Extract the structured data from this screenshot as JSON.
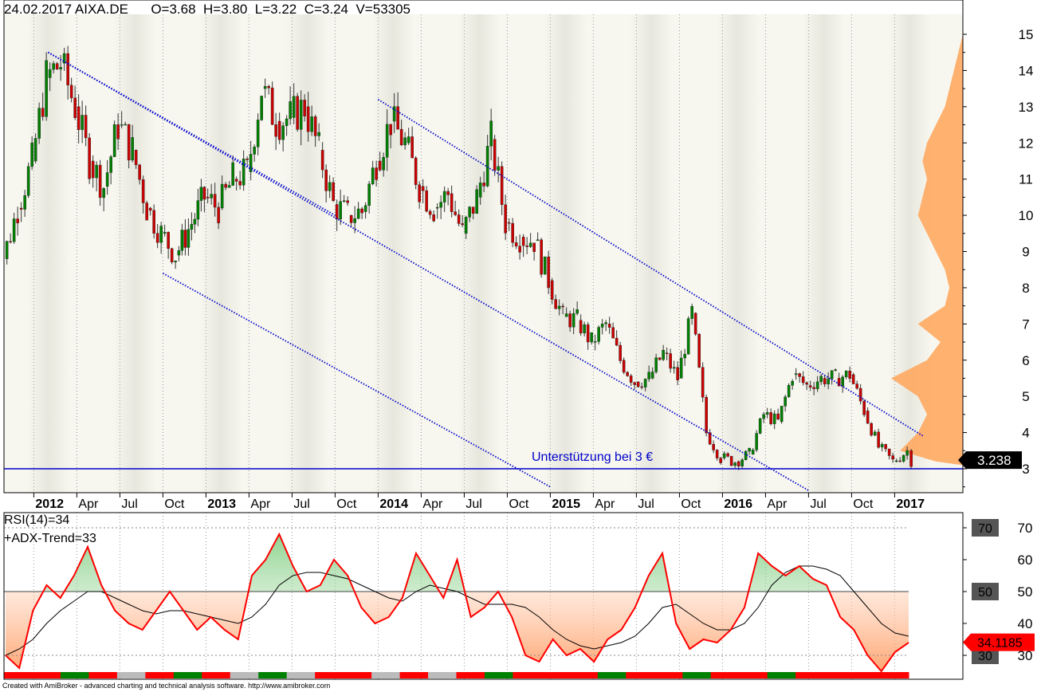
{
  "header": {
    "date": "24.02.2017",
    "symbol": "AIXA.DE",
    "open": "O=3.68",
    "high": "H=3.80",
    "low": "L=3.22",
    "close": "C=3.24",
    "volume": "V=53305"
  },
  "colors": {
    "up_candle": "#008000",
    "down_candle": "#cc0000",
    "trendline": "#0000cc",
    "volume_profile": "#ffa860",
    "rsi_line": "#ff0000",
    "band_light": "#f7f7ef",
    "band_dark": "#e7e7de"
  },
  "chart_data": [
    {
      "type": "candlestick",
      "title": "",
      "y_axis": {
        "min": 3,
        "max": 15,
        "ticks": [
          "15",
          "14",
          "13",
          "12",
          "11",
          "10",
          "9",
          "8",
          "7",
          "6",
          "5",
          "4",
          "3"
        ]
      },
      "x_axis_labels": [
        {
          "label": "2012",
          "bold": true,
          "date": "2012-01"
        },
        {
          "label": "Apr",
          "bold": false,
          "date": "2012-04"
        },
        {
          "label": "Jul",
          "bold": false,
          "date": "2012-07"
        },
        {
          "label": "Oct",
          "bold": false,
          "date": "2012-10"
        },
        {
          "label": "2013",
          "bold": true,
          "date": "2013-01"
        },
        {
          "label": "Apr",
          "bold": false,
          "date": "2013-04"
        },
        {
          "label": "Jul",
          "bold": false,
          "date": "2013-07"
        },
        {
          "label": "Oct",
          "bold": false,
          "date": "2013-10"
        },
        {
          "label": "2014",
          "bold": true,
          "date": "2014-01"
        },
        {
          "label": "Apr",
          "bold": false,
          "date": "2014-04"
        },
        {
          "label": "Jul",
          "bold": false,
          "date": "2014-07"
        },
        {
          "label": "Oct",
          "bold": false,
          "date": "2014-10"
        },
        {
          "label": "2015",
          "bold": true,
          "date": "2015-01"
        },
        {
          "label": "Apr",
          "bold": false,
          "date": "2015-04"
        },
        {
          "label": "Jul",
          "bold": false,
          "date": "2015-07"
        },
        {
          "label": "Oct",
          "bold": false,
          "date": "2015-10"
        },
        {
          "label": "2016",
          "bold": true,
          "date": "2016-01"
        },
        {
          "label": "Apr",
          "bold": false,
          "date": "2016-04"
        },
        {
          "label": "Jul",
          "bold": false,
          "date": "2016-07"
        },
        {
          "label": "Oct",
          "bold": false,
          "date": "2016-10"
        },
        {
          "label": "2017",
          "bold": true,
          "date": "2017-01"
        }
      ],
      "last_price": "3.238",
      "support_line": {
        "price": 3.0,
        "label": "Unterstützung bei 3 €"
      },
      "trendlines": [
        {
          "from": [
            "2012-02",
            14.5
          ],
          "to": [
            "2013-10",
            10.0
          ]
        },
        {
          "from": [
            "2012-02",
            14.5
          ],
          "to": [
            "2016-07",
            2.4
          ]
        },
        {
          "from": [
            "2012-10",
            8.4
          ],
          "to": [
            "2015-01",
            2.5
          ]
        },
        {
          "from": [
            "2014-01",
            13.2
          ],
          "to": [
            "2017-03",
            3.9
          ]
        }
      ],
      "price_path": [
        [
          "2011-10",
          9.5
        ],
        [
          "2011-11",
          8.8
        ],
        [
          "2011-12",
          10.2
        ],
        [
          "2012-01",
          11.5
        ],
        [
          "2012-02",
          13.8
        ],
        [
          "2012-03",
          14.2
        ],
        [
          "2012-04",
          13.0
        ],
        [
          "2012-05",
          11.5
        ],
        [
          "2012-06",
          10.8
        ],
        [
          "2012-07",
          12.5
        ],
        [
          "2012-08",
          11.8
        ],
        [
          "2012-09",
          10.2
        ],
        [
          "2012-10",
          9.5
        ],
        [
          "2012-11",
          8.9
        ],
        [
          "2013-01",
          10.5
        ],
        [
          "2013-02",
          10.2
        ],
        [
          "2013-03",
          11.0
        ],
        [
          "2013-04",
          11.2
        ],
        [
          "2013-05",
          13.5
        ],
        [
          "2013-06",
          12.6
        ],
        [
          "2013-07",
          12.7
        ],
        [
          "2013-08",
          13.0
        ],
        [
          "2013-09",
          11.8
        ],
        [
          "2013-10",
          10.3
        ],
        [
          "2013-11",
          10.0
        ],
        [
          "2013-12",
          10.1
        ],
        [
          "2014-01",
          11.5
        ],
        [
          "2014-02",
          12.6
        ],
        [
          "2014-03",
          12.0
        ],
        [
          "2014-04",
          10.8
        ],
        [
          "2014-05",
          10.2
        ],
        [
          "2014-06",
          10.6
        ],
        [
          "2014-07",
          9.5
        ],
        [
          "2014-08",
          10.5
        ],
        [
          "2014-09",
          12.1
        ],
        [
          "2014-10",
          9.8
        ],
        [
          "2014-11",
          9.4
        ],
        [
          "2014-12",
          9.3
        ],
        [
          "2015-01",
          8.2
        ],
        [
          "2015-02",
          7.2
        ],
        [
          "2015-03",
          7.1
        ],
        [
          "2015-04",
          6.5
        ],
        [
          "2015-05",
          7.0
        ],
        [
          "2015-06",
          6.0
        ],
        [
          "2015-07",
          5.4
        ],
        [
          "2015-08",
          5.5
        ],
        [
          "2015-09",
          6.2
        ],
        [
          "2015-10",
          5.5
        ],
        [
          "2015-11",
          7.3
        ],
        [
          "2015-12",
          4.0
        ],
        [
          "2016-01",
          3.3
        ],
        [
          "2016-02",
          3.2
        ],
        [
          "2016-03",
          3.4
        ],
        [
          "2016-04",
          4.5
        ],
        [
          "2016-05",
          4.3
        ],
        [
          "2016-06",
          5.6
        ],
        [
          "2016-07",
          5.3
        ],
        [
          "2016-08",
          5.5
        ],
        [
          "2016-09",
          5.5
        ],
        [
          "2016-10",
          5.6
        ],
        [
          "2016-11",
          4.6
        ],
        [
          "2016-12",
          3.6
        ],
        [
          "2017-01",
          3.2
        ],
        [
          "2017-02",
          3.5
        ],
        [
          "2017-02-24",
          3.24
        ]
      ],
      "volume_profile": [
        [
          14.5,
          1
        ],
        [
          13.0,
          4
        ],
        [
          12.5,
          6
        ],
        [
          12.0,
          8
        ],
        [
          11.5,
          9
        ],
        [
          11.0,
          8
        ],
        [
          10.5,
          9
        ],
        [
          10.0,
          10
        ],
        [
          9.5,
          8
        ],
        [
          9.0,
          6
        ],
        [
          8.5,
          4
        ],
        [
          8.0,
          3
        ],
        [
          7.5,
          4
        ],
        [
          7.0,
          10
        ],
        [
          6.5,
          5
        ],
        [
          6.0,
          8
        ],
        [
          5.5,
          16
        ],
        [
          5.0,
          10
        ],
        [
          4.5,
          8
        ],
        [
          4.0,
          10
        ],
        [
          3.5,
          14
        ],
        [
          3.2,
          6
        ]
      ]
    },
    {
      "type": "line",
      "title": "",
      "indicator_labels": [
        "RSI(14)=34",
        "+ADX-Trend=33"
      ],
      "y_axis": {
        "ticks": [
          "70",
          "60",
          "50",
          "40",
          "30"
        ],
        "boxed": [
          "70",
          "50",
          "30"
        ]
      },
      "levels": [
        70,
        50,
        30
      ],
      "last_value": "34.1185",
      "series": [
        {
          "values": [
            30,
            26,
            44,
            52,
            48,
            55,
            64,
            52,
            44,
            40,
            38,
            44,
            50,
            44,
            38,
            42,
            38,
            35,
            55,
            60,
            68,
            58,
            50,
            52,
            60,
            55,
            45,
            40,
            42,
            48,
            62,
            55,
            48,
            60,
            42,
            45,
            50,
            42,
            30,
            28,
            35,
            30,
            32,
            28,
            35,
            38,
            45,
            55,
            62,
            40,
            32,
            35,
            34,
            38,
            45,
            62,
            58,
            55,
            58,
            54,
            52,
            42,
            38,
            30,
            25,
            31,
            34
          ]
        },
        {
          "values": [
            30,
            32,
            35,
            40,
            44,
            47,
            50,
            50,
            48,
            46,
            44,
            43,
            44,
            44,
            43,
            42,
            41,
            40,
            42,
            46,
            52,
            55,
            56,
            56,
            55,
            54,
            52,
            50,
            48,
            47,
            50,
            52,
            51,
            50,
            48,
            46,
            46,
            46,
            45,
            42,
            38,
            35,
            33,
            32,
            33,
            34,
            36,
            40,
            45,
            46,
            43,
            40,
            38,
            38,
            40,
            45,
            52,
            56,
            58,
            58,
            57,
            55,
            50,
            45,
            40,
            37,
            36
          ]
        }
      ],
      "trend_bar": {
        "colors": [
          "red",
          "red",
          "green",
          "red",
          "grey",
          "red",
          "green",
          "red",
          "grey",
          "green",
          "grey",
          "red",
          "red",
          "grey",
          "red",
          "grey",
          "red",
          "green",
          "red",
          "red",
          "red",
          "green",
          "red",
          "red",
          "green",
          "red",
          "red",
          "green",
          "red",
          "red",
          "red",
          "red"
        ]
      }
    }
  ],
  "footer": {
    "text": "Created with AmiBroker - advanced charting and technical analysis software. http://www.amibroker.com"
  }
}
